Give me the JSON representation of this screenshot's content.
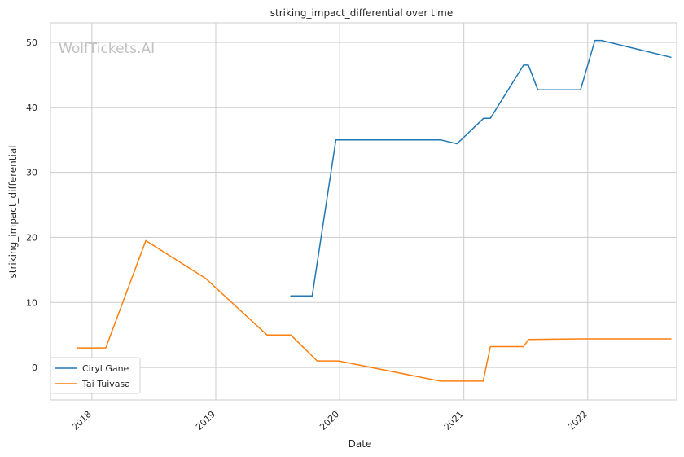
{
  "chart_data": {
    "type": "line",
    "title": "striking_impact_differential over time",
    "xlabel": "Date",
    "ylabel": "striking_impact_differential",
    "watermark": "WolfTickets.AI",
    "xlim": [
      "2017-09-01",
      "2022-09-20"
    ],
    "ylim": [
      -5,
      53
    ],
    "x_ticks": [
      "2018",
      "2019",
      "2020",
      "2021",
      "2022"
    ],
    "y_ticks": [
      0,
      10,
      20,
      30,
      40,
      50
    ],
    "grid": true,
    "legend_position": "lower-left",
    "series": [
      {
        "name": "Ciryl Gane",
        "color": "#1f77b4",
        "points": [
          [
            "2019-08-10",
            11.0
          ],
          [
            "2019-10-12",
            11.0
          ],
          [
            "2019-12-21",
            35.0
          ],
          [
            "2020-10-24",
            35.0
          ],
          [
            "2020-12-12",
            34.4
          ],
          [
            "2021-02-28",
            38.3
          ],
          [
            "2021-03-20",
            38.3
          ],
          [
            "2021-06-26",
            46.5
          ],
          [
            "2021-07-10",
            46.5
          ],
          [
            "2021-08-07",
            42.7
          ],
          [
            "2021-12-11",
            42.7
          ],
          [
            "2022-01-22",
            50.3
          ],
          [
            "2022-02-10",
            50.3
          ],
          [
            "2022-09-03",
            47.7
          ]
        ]
      },
      {
        "name": "Tai Tuivasa",
        "color": "#ff7f0e",
        "points": [
          [
            "2017-11-19",
            3.0
          ],
          [
            "2018-02-11",
            3.0
          ],
          [
            "2018-06-09",
            19.5
          ],
          [
            "2018-12-02",
            13.7
          ],
          [
            "2019-06-01",
            5.0
          ],
          [
            "2019-08-10",
            5.0
          ],
          [
            "2019-10-27",
            1.0
          ],
          [
            "2019-12-29",
            1.0
          ],
          [
            "2020-10-24",
            -2.1
          ],
          [
            "2021-02-27",
            -2.1
          ],
          [
            "2021-03-20",
            3.2
          ],
          [
            "2021-06-26",
            3.2
          ],
          [
            "2021-07-10",
            4.3
          ],
          [
            "2021-12-11",
            4.4
          ],
          [
            "2022-02-12",
            4.4
          ],
          [
            "2022-09-03",
            4.4
          ]
        ]
      }
    ]
  }
}
